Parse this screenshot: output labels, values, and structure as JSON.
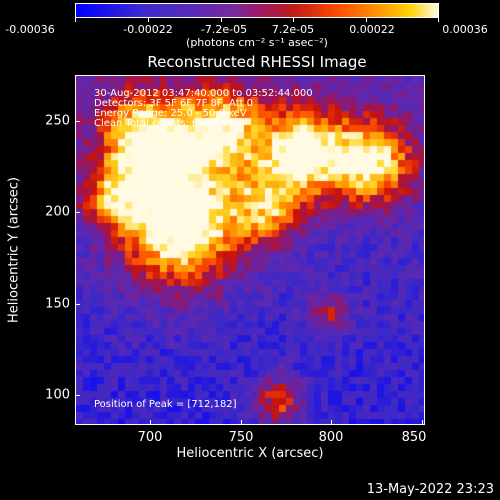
{
  "colorbar": {
    "ticks": [
      "-0.00036",
      "-0.00022",
      "-7.2e-05",
      "7.2e-05",
      "0.00022",
      "0.00036"
    ],
    "units": "(photons cm⁻² s⁻¹ asec⁻²)"
  },
  "plot": {
    "title": "Reconstructed RHESSI Image",
    "info": [
      "30-Aug-2012 03:47:40.000 to 03:52:44.000",
      "Detectors: 3F 5F 6F 7F 8F, Att 0",
      "Energy Range: 25.0 - 50.0 keV",
      "Clean    Total counts: 6.68E+03"
    ],
    "peak": "Position of Peak = [712,182]",
    "x_ticks": [
      "700",
      "750",
      "800",
      "850"
    ],
    "y_ticks": [
      "250",
      "200",
      "150",
      "100"
    ],
    "xlabel": "Heliocentric X (arcsec)",
    "ylabel": "Heliocentric Y (arcsec)"
  },
  "footer": {
    "timestamp": "13-May-2022 23:23"
  }
}
